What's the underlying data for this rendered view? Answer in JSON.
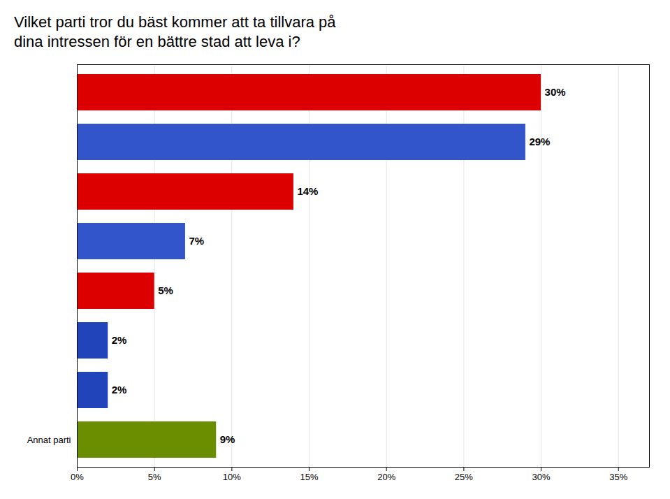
{
  "chart_data": {
    "type": "bar",
    "orientation": "horizontal",
    "title": "Vilket parti tror du bäst kommer att ta tillvara på",
    "subtitle": "dina intressen för en bättre stad att leva i?",
    "categories": [
      null,
      null,
      null,
      null,
      null,
      null,
      null,
      "Annat parti"
    ],
    "values": [
      30,
      29,
      14,
      7,
      5,
      2,
      2,
      9
    ],
    "value_labels": [
      "30%",
      "29%",
      "14%",
      "7%",
      "5%",
      "2%",
      "2%",
      "9%"
    ],
    "data_labels": true,
    "colors": [
      "#dd0000",
      "#3355cc",
      "#dd0000",
      "#3355cc",
      "#dd0000",
      "#2244bb",
      "#2244bb",
      "#6b8e00"
    ],
    "xlim": [
      0,
      37
    ],
    "xticks": [
      {
        "value": 0,
        "label": "0%"
      },
      {
        "value": 5,
        "label": "5%"
      },
      {
        "value": 10,
        "label": "10%"
      },
      {
        "value": 15,
        "label": "15%"
      },
      {
        "value": 20,
        "label": "20%"
      },
      {
        "value": 25,
        "label": "25%"
      },
      {
        "value": 30,
        "label": "30%"
      },
      {
        "value": 35,
        "label": "35%"
      }
    ],
    "grid": true
  }
}
